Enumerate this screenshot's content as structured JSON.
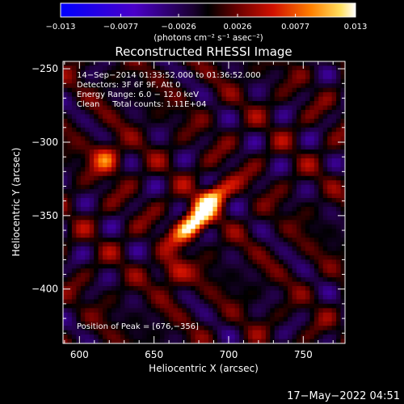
{
  "chart_data": {
    "type": "heatmap",
    "title": "Reconstructed RHESSI Image",
    "xlabel": "Heliocentric X (arcsec)",
    "ylabel": "Heliocentric Y (arcsec)",
    "xlim": [
      589,
      778
    ],
    "ylim": [
      -437,
      -245
    ],
    "x_ticks": [
      600,
      650,
      700,
      750
    ],
    "x_tick_labels": [
      "600",
      "650",
      "700",
      "750"
    ],
    "y_ticks": [
      -250,
      -300,
      -350,
      -400
    ],
    "y_tick_labels": [
      "−250",
      "−300",
      "−350",
      "−400"
    ],
    "colorbar": {
      "ticks": [
        -0.013,
        -0.0077,
        -0.0026,
        0.0026,
        0.0077,
        0.013
      ],
      "tick_labels": [
        "−0.013",
        "−0.0077",
        "−0.0026",
        "0.0026",
        "0.0077",
        "0.013"
      ],
      "unit_label": "(photons cm⁻² s⁻¹ asec⁻²)",
      "colormap": "blue-purple-black-red-orange-yellow-white",
      "range": [
        -0.013,
        0.013
      ]
    },
    "annotations": [
      "14−Sep−2014 01:33:52.000 to 01:36:52.000",
      "Detectors: 3F 6F 9F, Att 0",
      "Energy Range: 6.0 − 12.0 keV",
      "Clean     Total counts: 1.11E+04"
    ],
    "peak_label": "Position of Peak = [676,−356]",
    "peak_position": [
      676,
      -356
    ],
    "sources": [
      {
        "x": 676,
        "y": -356,
        "peak": 0.013
      },
      {
        "x": 688,
        "y": -338,
        "peak": 0.011
      },
      {
        "x": 618,
        "y": -311,
        "peak": 0.0075
      },
      {
        "x": 663,
        "y": -389,
        "peak": 0.006
      }
    ]
  },
  "footer": {
    "date": "17−May−2022 04:51"
  }
}
